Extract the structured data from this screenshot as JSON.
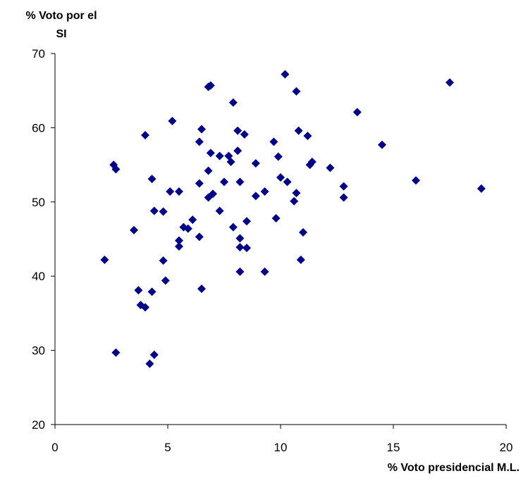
{
  "chart_data": {
    "type": "scatter",
    "title": "",
    "ylabel_lines": [
      "% Voto por el",
      "SI"
    ],
    "xlabel": "% Voto presidencial M.L.",
    "xlim": [
      0,
      20
    ],
    "ylim": [
      20,
      70
    ],
    "xticks": [
      0,
      5,
      10,
      15,
      20
    ],
    "yticks": [
      20,
      30,
      40,
      50,
      60,
      70
    ],
    "grid": false,
    "legend": "none",
    "marker": "diamond",
    "color": "#00008B",
    "points": [
      {
        "x": 2.2,
        "y": 42.2
      },
      {
        "x": 2.6,
        "y": 55.0
      },
      {
        "x": 2.7,
        "y": 54.4
      },
      {
        "x": 2.7,
        "y": 29.7
      },
      {
        "x": 3.5,
        "y": 46.2
      },
      {
        "x": 3.7,
        "y": 38.1
      },
      {
        "x": 3.8,
        "y": 36.1
      },
      {
        "x": 4.0,
        "y": 59.0
      },
      {
        "x": 4.0,
        "y": 35.8
      },
      {
        "x": 4.2,
        "y": 28.2
      },
      {
        "x": 4.3,
        "y": 53.1
      },
      {
        "x": 4.3,
        "y": 37.9
      },
      {
        "x": 4.4,
        "y": 48.8
      },
      {
        "x": 4.4,
        "y": 29.4
      },
      {
        "x": 4.8,
        "y": 48.7
      },
      {
        "x": 4.8,
        "y": 42.1
      },
      {
        "x": 4.9,
        "y": 39.4
      },
      {
        "x": 5.1,
        "y": 51.4
      },
      {
        "x": 5.2,
        "y": 60.9
      },
      {
        "x": 5.5,
        "y": 51.4
      },
      {
        "x": 5.5,
        "y": 44.8
      },
      {
        "x": 5.5,
        "y": 44.0
      },
      {
        "x": 5.7,
        "y": 46.6
      },
      {
        "x": 5.9,
        "y": 46.4
      },
      {
        "x": 6.1,
        "y": 47.6
      },
      {
        "x": 6.4,
        "y": 58.1
      },
      {
        "x": 6.4,
        "y": 52.5
      },
      {
        "x": 6.4,
        "y": 45.3
      },
      {
        "x": 6.5,
        "y": 59.8
      },
      {
        "x": 6.5,
        "y": 38.3
      },
      {
        "x": 6.8,
        "y": 65.5
      },
      {
        "x": 6.8,
        "y": 54.2
      },
      {
        "x": 6.8,
        "y": 50.6
      },
      {
        "x": 6.9,
        "y": 65.7
      },
      {
        "x": 6.9,
        "y": 56.6
      },
      {
        "x": 7.0,
        "y": 51.1
      },
      {
        "x": 7.3,
        "y": 56.2
      },
      {
        "x": 7.3,
        "y": 48.8
      },
      {
        "x": 7.5,
        "y": 52.7
      },
      {
        "x": 7.7,
        "y": 56.2
      },
      {
        "x": 7.8,
        "y": 55.4
      },
      {
        "x": 7.9,
        "y": 63.4
      },
      {
        "x": 7.9,
        "y": 46.6
      },
      {
        "x": 8.1,
        "y": 59.6
      },
      {
        "x": 8.1,
        "y": 56.9
      },
      {
        "x": 8.2,
        "y": 52.7
      },
      {
        "x": 8.2,
        "y": 45.1
      },
      {
        "x": 8.2,
        "y": 43.9
      },
      {
        "x": 8.2,
        "y": 40.6
      },
      {
        "x": 8.4,
        "y": 59.1
      },
      {
        "x": 8.5,
        "y": 47.4
      },
      {
        "x": 8.5,
        "y": 43.8
      },
      {
        "x": 8.9,
        "y": 55.2
      },
      {
        "x": 8.9,
        "y": 50.8
      },
      {
        "x": 9.3,
        "y": 51.4
      },
      {
        "x": 9.3,
        "y": 40.6
      },
      {
        "x": 9.7,
        "y": 58.1
      },
      {
        "x": 9.8,
        "y": 47.8
      },
      {
        "x": 9.9,
        "y": 56.1
      },
      {
        "x": 10.0,
        "y": 53.3
      },
      {
        "x": 10.2,
        "y": 67.2
      },
      {
        "x": 10.3,
        "y": 52.7
      },
      {
        "x": 10.6,
        "y": 50.1
      },
      {
        "x": 10.7,
        "y": 64.9
      },
      {
        "x": 10.7,
        "y": 51.2
      },
      {
        "x": 10.8,
        "y": 59.6
      },
      {
        "x": 10.9,
        "y": 42.2
      },
      {
        "x": 11.0,
        "y": 45.9
      },
      {
        "x": 11.2,
        "y": 58.9
      },
      {
        "x": 11.3,
        "y": 55.0
      },
      {
        "x": 11.4,
        "y": 55.4
      },
      {
        "x": 12.2,
        "y": 54.6
      },
      {
        "x": 12.8,
        "y": 52.1
      },
      {
        "x": 12.8,
        "y": 50.6
      },
      {
        "x": 13.4,
        "y": 62.1
      },
      {
        "x": 14.5,
        "y": 57.7
      },
      {
        "x": 16.0,
        "y": 52.9
      },
      {
        "x": 17.5,
        "y": 66.1
      },
      {
        "x": 18.9,
        "y": 51.8
      }
    ]
  }
}
